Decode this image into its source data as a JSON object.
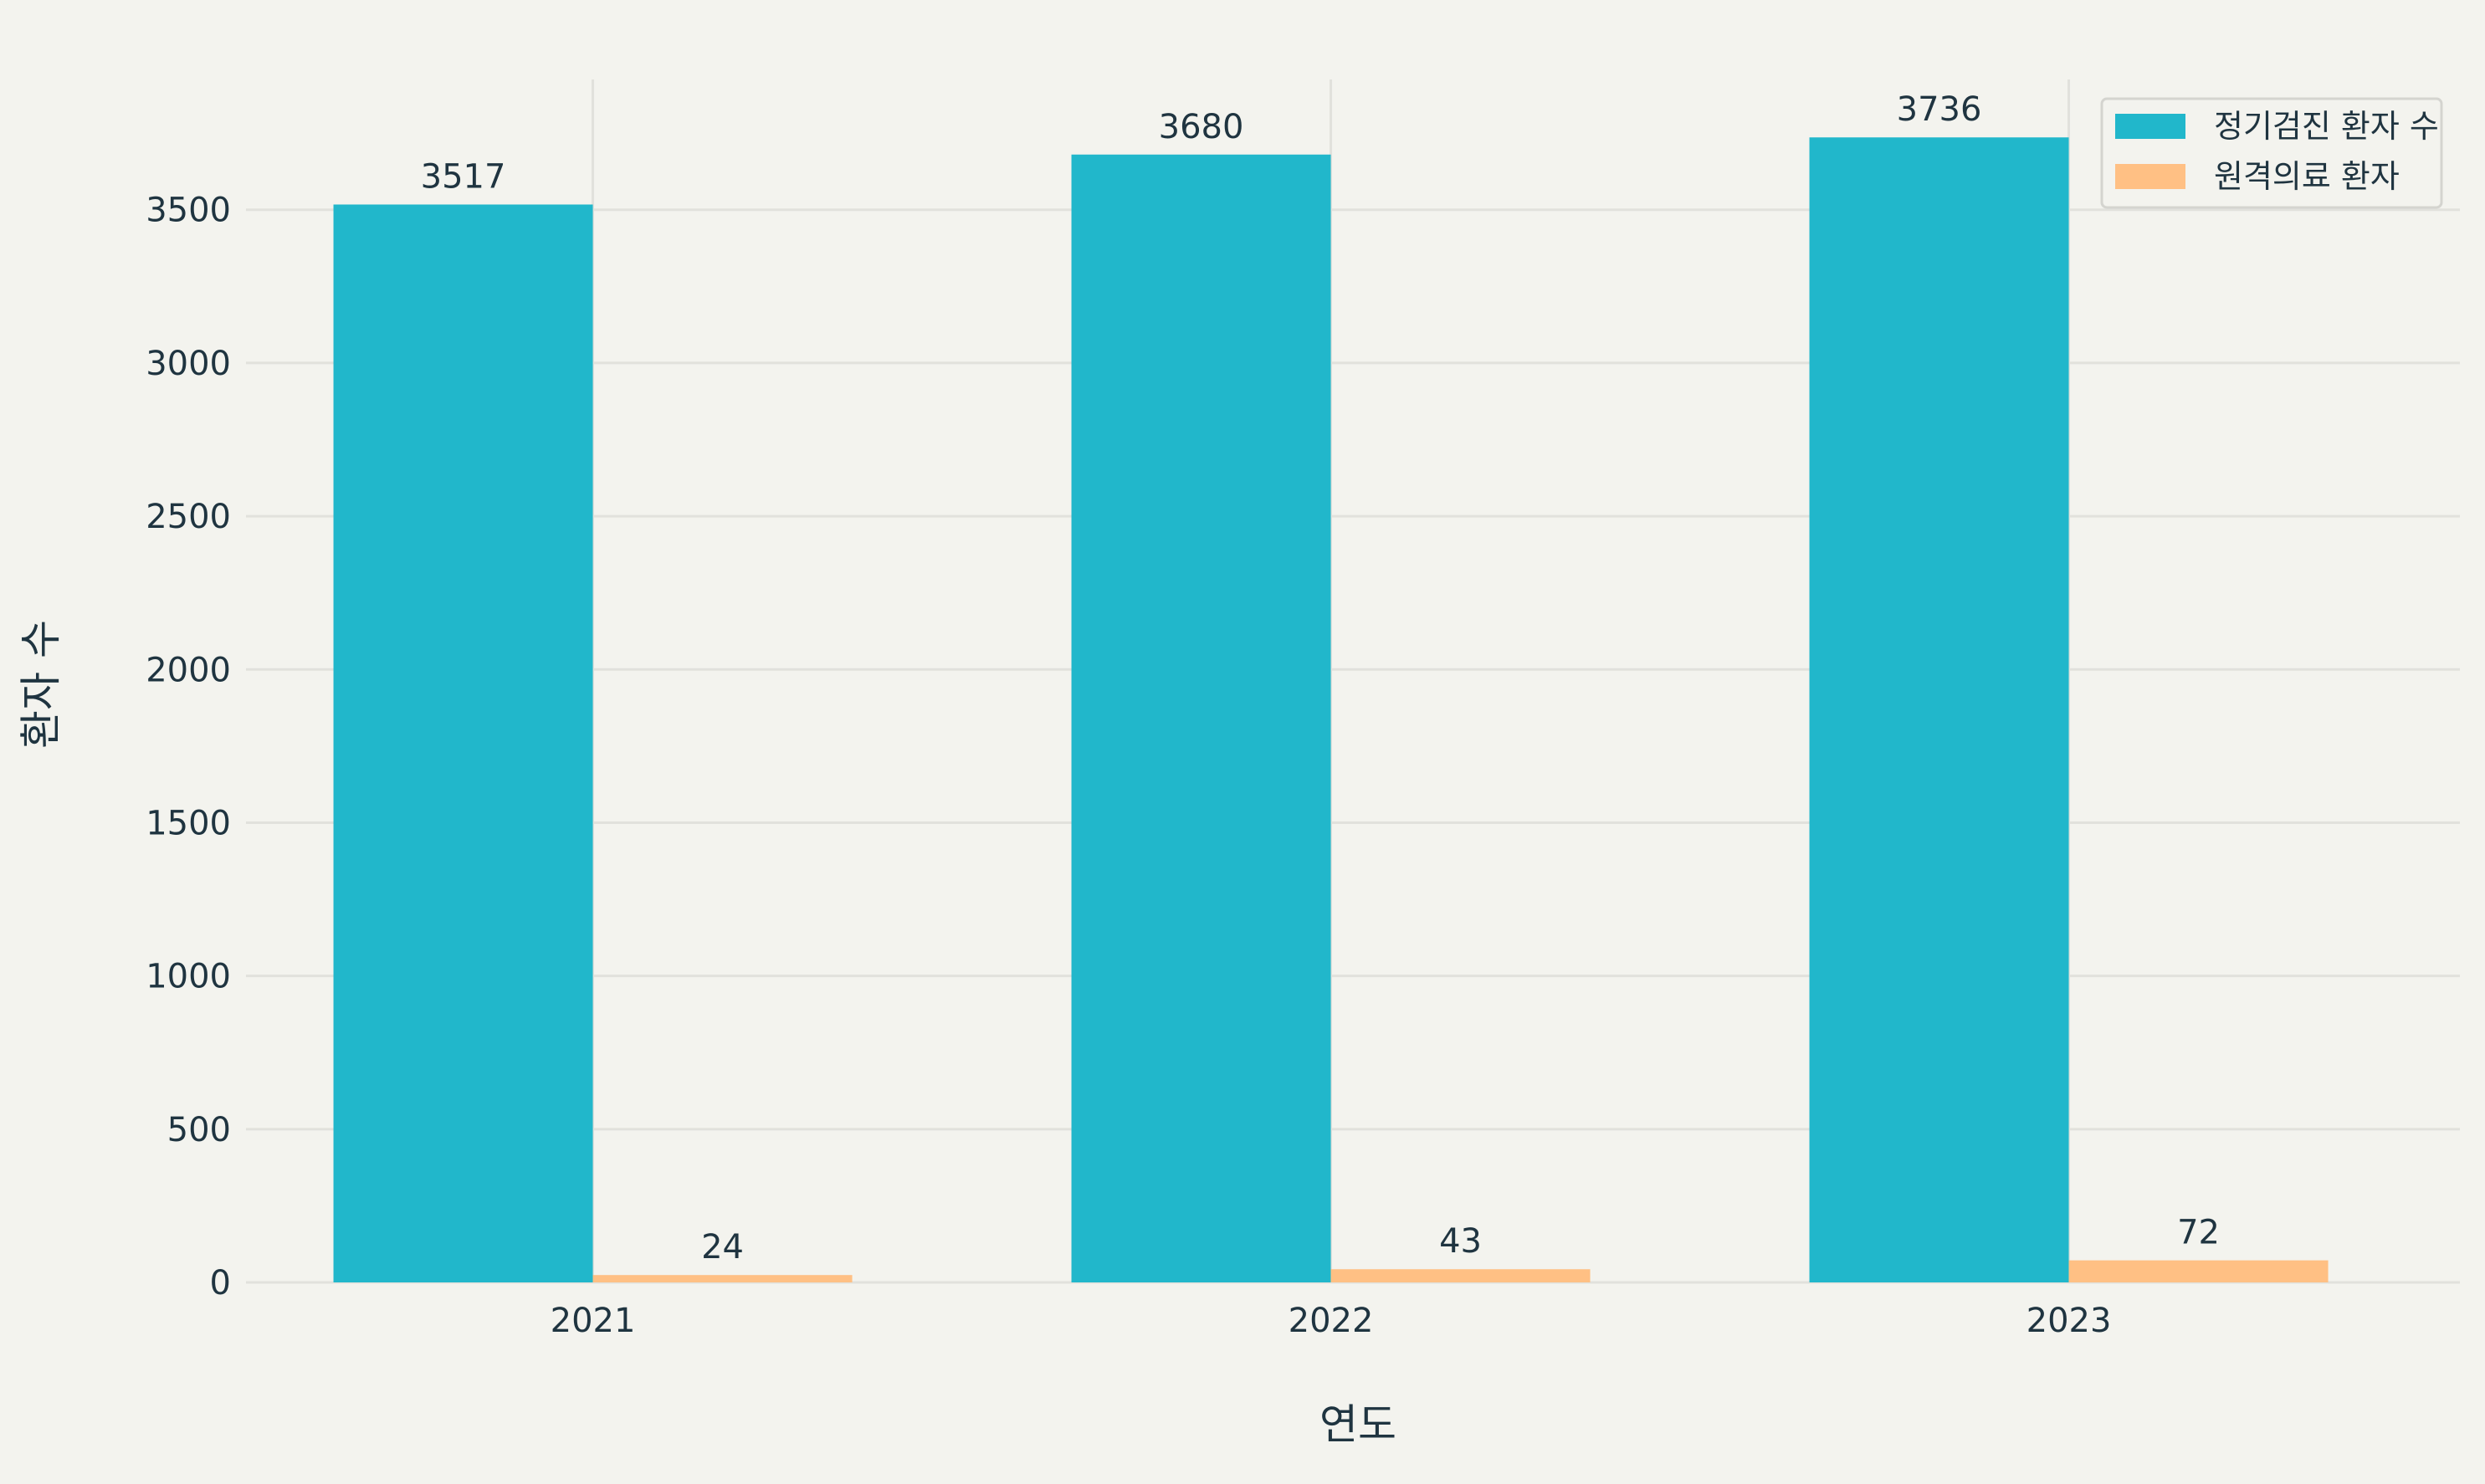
{
  "chart_data": {
    "type": "bar",
    "title": "",
    "xlabel": "연도",
    "ylabel": "환자 수",
    "categories": [
      "2021",
      "2022",
      "2023"
    ],
    "series": [
      {
        "name": "정기검진 환자 수",
        "values": [
          3517,
          3680,
          3736
        ],
        "color": "#21b7cb"
      },
      {
        "name": "원격의료 환자",
        "values": [
          24,
          43,
          72
        ],
        "color": "#ffc084"
      }
    ],
    "ylim": [
      0,
      3925
    ],
    "yticks": [
      0,
      500,
      1000,
      1500,
      2000,
      2500,
      3000,
      3500
    ],
    "grid": true,
    "legend_position": "top-right"
  }
}
